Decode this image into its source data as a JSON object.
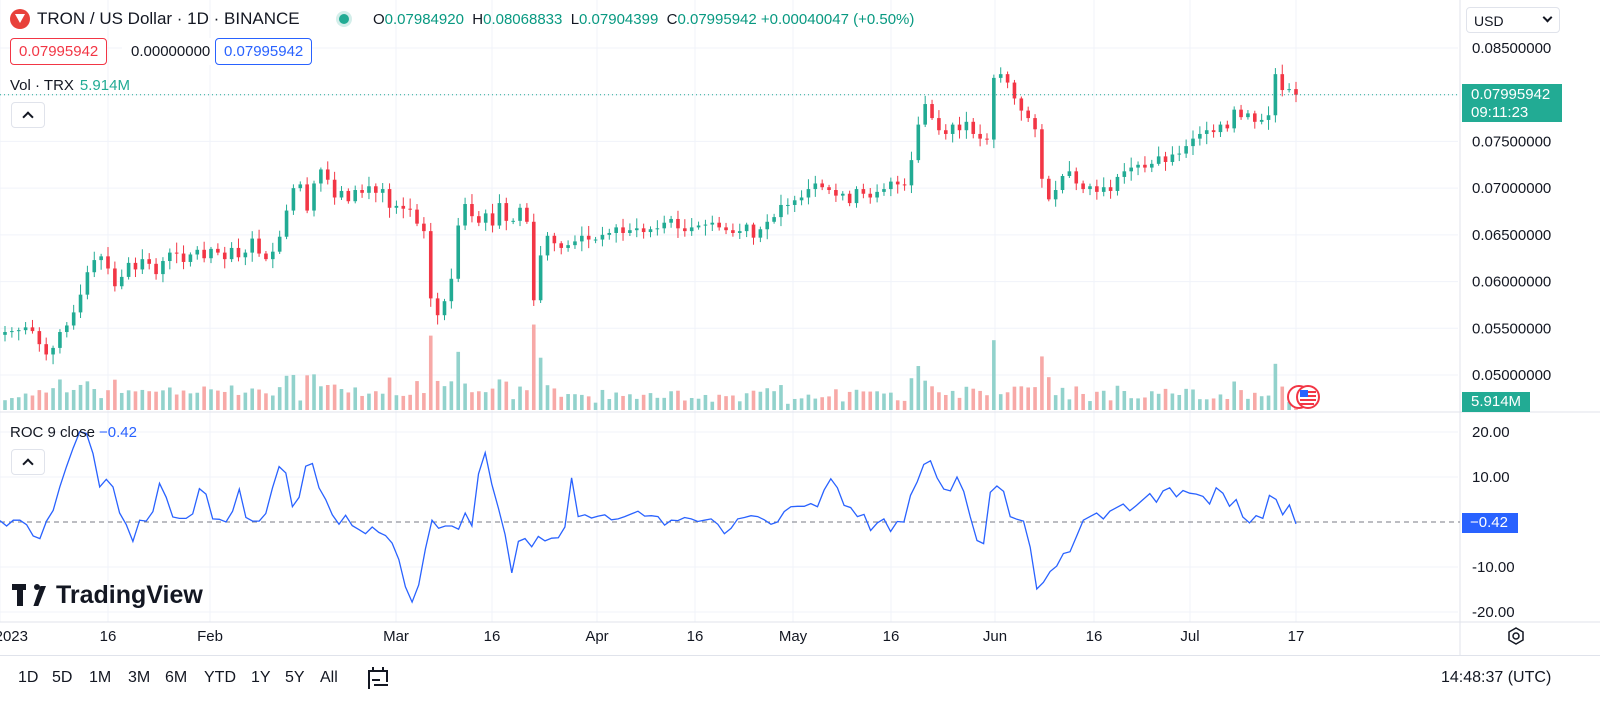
{
  "header": {
    "symbol": "TRON / US Dollar · 1D · BINANCE",
    "o_label": "O",
    "o_value": "0.07984920",
    "h_label": "H",
    "h_value": "0.08068833",
    "l_label": "L",
    "l_value": "0.07904399",
    "c_label": "C",
    "c_value": "0.07995942",
    "change": "+0.00040047 (+0.50%)"
  },
  "price_boxes": {
    "sell": "0.07995942",
    "spread": "0.00000000",
    "buy": "0.07995942"
  },
  "volume_legend": {
    "label": "Vol · TRX",
    "value": "5.914M"
  },
  "roc_legend": {
    "label": "ROC 9 close",
    "value": "−0.42"
  },
  "currency": "USD",
  "last_price_tag": {
    "price": "0.07995942",
    "countdown": "09:11:23"
  },
  "volume_tag": "5.914M",
  "roc_tag": "−0.42",
  "brand": "TradingView",
  "range_buttons": [
    "1D",
    "5D",
    "1M",
    "3M",
    "6M",
    "YTD",
    "1Y",
    "5Y",
    "All"
  ],
  "clock": "14:48:37 (UTC)",
  "colors": {
    "up": "#22ab94",
    "down": "#f23645",
    "up_vol": "#92d2cc",
    "down_vol": "#f7a9a7",
    "roc": "#2962ff"
  },
  "chart_data": [
    {
      "type": "candlestick",
      "title": "TRON / US Dollar · 1D · BINANCE",
      "x_ticks": [
        "2023",
        "16",
        "Feb",
        "Mar",
        "16",
        "Apr",
        "16",
        "May",
        "16",
        "Jun",
        "16",
        "Jul",
        "17"
      ],
      "y_ticks": [
        "0.08500000",
        "0.08000000",
        "0.07500000",
        "0.07000000",
        "0.06500000",
        "0.06000000",
        "0.05500000",
        "0.05000000"
      ],
      "ylim": [
        0.0465,
        0.0885
      ],
      "close_series_approx": [
        0.0546,
        0.0547,
        0.0548,
        0.0551,
        0.0547,
        0.0533,
        0.0522,
        0.0529,
        0.0546,
        0.0553,
        0.0567,
        0.0586,
        0.061,
        0.0623,
        0.0627,
        0.0614,
        0.0595,
        0.0605,
        0.062,
        0.0613,
        0.0624,
        0.0619,
        0.0608,
        0.0622,
        0.0631,
        0.063,
        0.0621,
        0.0629,
        0.0634,
        0.0625,
        0.0635,
        0.0631,
        0.0624,
        0.0636,
        0.0626,
        0.0631,
        0.0646,
        0.063,
        0.0624,
        0.0632,
        0.0648,
        0.0676,
        0.07,
        0.0704,
        0.0676,
        0.0705,
        0.072,
        0.0709,
        0.069,
        0.0697,
        0.0686,
        0.0698,
        0.0695,
        0.0702,
        0.0695,
        0.0699,
        0.0679,
        0.0681,
        0.0678,
        0.0677,
        0.0662,
        0.0654,
        0.0582,
        0.0564,
        0.0579,
        0.0603,
        0.066,
        0.0683,
        0.067,
        0.0663,
        0.0673,
        0.066,
        0.0684,
        0.0665,
        0.0665,
        0.0679,
        0.0664,
        0.058,
        0.0628,
        0.0649,
        0.0641,
        0.0636,
        0.0639,
        0.0643,
        0.0649,
        0.0645,
        0.0645,
        0.065,
        0.0652,
        0.0658,
        0.0652,
        0.0655,
        0.0657,
        0.0653,
        0.0656,
        0.0657,
        0.0663,
        0.0667,
        0.0657,
        0.0654,
        0.0658,
        0.066,
        0.0661,
        0.0663,
        0.0658,
        0.0655,
        0.0652,
        0.0654,
        0.0661,
        0.0647,
        0.0656,
        0.0664,
        0.0669,
        0.0682,
        0.0682,
        0.0687,
        0.069,
        0.0699,
        0.0705,
        0.0701,
        0.0698,
        0.0692,
        0.0694,
        0.0684,
        0.0699,
        0.0694,
        0.069,
        0.0696,
        0.0699,
        0.0707,
        0.0704,
        0.0703,
        0.073,
        0.0768,
        0.079,
        0.0775,
        0.0762,
        0.0758,
        0.0768,
        0.0762,
        0.0771,
        0.0758,
        0.0753,
        0.0752,
        0.0818,
        0.0822,
        0.0813,
        0.0796,
        0.0783,
        0.0775,
        0.0763,
        0.071,
        0.0688,
        0.0698,
        0.0713,
        0.0718,
        0.0705,
        0.0699,
        0.0702,
        0.0696,
        0.0701,
        0.0697,
        0.0712,
        0.0718,
        0.0722,
        0.0725,
        0.0722,
        0.0726,
        0.0734,
        0.0728,
        0.0736,
        0.0737,
        0.0745,
        0.0753,
        0.0758,
        0.0762,
        0.076,
        0.0768,
        0.0764,
        0.0784,
        0.0776,
        0.078,
        0.0771,
        0.0773,
        0.0778,
        0.0822,
        0.0805,
        0.0806,
        0.08
      ]
    },
    {
      "type": "bar",
      "series": [
        {
          "name": "Vol · TRX",
          "last_value": "5.914M"
        }
      ]
    },
    {
      "type": "line",
      "title": "ROC 9 close",
      "y_ticks": [
        "20.00",
        "10.00",
        "-10.00",
        "-20.00"
      ],
      "ylim": [
        -22,
        22
      ],
      "values": [
        0.3,
        -0.9,
        0.4,
        0.4,
        -0.6,
        -3.1,
        -3.7,
        0.2,
        2.6,
        7.8,
        12.3,
        16.4,
        20.1,
        19.7,
        15.2,
        7.8,
        9.5,
        7.8,
        2.0,
        -0.6,
        -4.3,
        0.4,
        0.2,
        2.3,
        8.6,
        5.5,
        1.1,
        0.8,
        0.8,
        1.8,
        7.4,
        6.2,
        0.7,
        0.6,
        0.0,
        2.4,
        7.3,
        1.0,
        0.2,
        0.2,
        1.9,
        7.6,
        12.3,
        10.9,
        3.4,
        5.5,
        12.4,
        13.0,
        7.6,
        5.0,
        1.6,
        -0.5,
        1.5,
        -0.8,
        -1.7,
        -2.6,
        -1.1,
        -2.3,
        -3.0,
        -4.7,
        -8.3,
        -14.4,
        -17.8,
        -14.0,
        -6.0,
        0.4,
        -1.4,
        -0.9,
        -0.9,
        -1.6,
        2.0,
        -0.9,
        10.7,
        15.4,
        8.4,
        3.0,
        -2.8,
        -11.3,
        -4.3,
        -3.7,
        -5.5,
        -3.2,
        -4.2,
        -3.6,
        -3.5,
        -1.1,
        9.8,
        1.2,
        1.6,
        0.9,
        1.3,
        1.6,
        0.5,
        0.7,
        1.2,
        1.8,
        2.4,
        1.3,
        1.4,
        1.2,
        -0.7,
        0.4,
        0.3,
        1.0,
        0.7,
        0.1,
        0.4,
        0.7,
        -0.5,
        -2.6,
        -1.4,
        0.7,
        1.0,
        1.4,
        1.2,
        0.5,
        -0.5,
        0.0,
        2.3,
        3.4,
        3.5,
        3.5,
        4.1,
        3.4,
        7.1,
        9.6,
        7.6,
        3.7,
        3.2,
        1.2,
        1.7,
        -1.9,
        -0.2,
        0.7,
        -2.1,
        0.1,
        0.0,
        5.9,
        8.9,
        12.8,
        13.6,
        9.8,
        7.3,
        6.9,
        10.0,
        6.8,
        1.1,
        -4.1,
        -4.8,
        6.6,
        8.0,
        6.8,
        1.2,
        0.6,
        0.2,
        -5.6,
        -14.9,
        -13.4,
        -11.0,
        -9.8,
        -7.0,
        -6.6,
        -3.1,
        0.4,
        1.2,
        2.0,
        0.7,
        2.4,
        3.2,
        4.0,
        2.5,
        3.7,
        5.0,
        6.3,
        4.4,
        6.9,
        7.6,
        5.6,
        7.0,
        6.4,
        6.2,
        5.7,
        4.0,
        7.6,
        6.4,
        3.5,
        5.0,
        1.1,
        -0.2,
        1.4,
        0.8,
        5.9,
        5.0,
        1.6,
        3.8,
        -0.42
      ]
    }
  ]
}
